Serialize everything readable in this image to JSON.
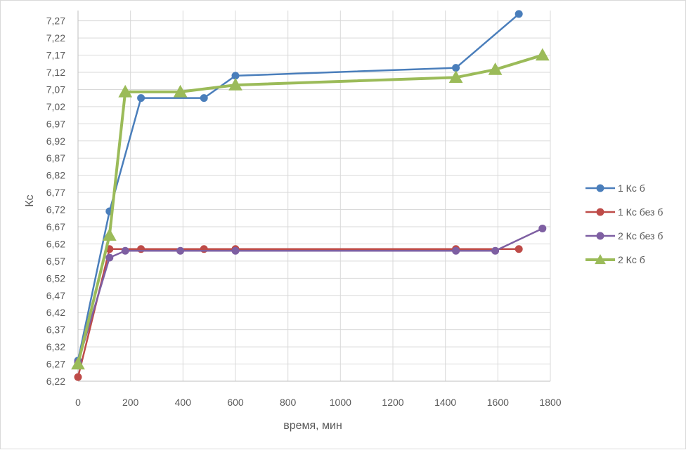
{
  "chart_data": {
    "type": "line",
    "title": "",
    "xlabel": "время, мин",
    "ylabel": "Кс",
    "xlim": [
      0,
      1800
    ],
    "ylim": [
      6.22,
      7.3
    ],
    "xticks": [
      0,
      200,
      400,
      600,
      800,
      1000,
      1200,
      1400,
      1600,
      1800
    ],
    "yticks": [
      6.22,
      6.27,
      6.32,
      6.37,
      6.42,
      6.47,
      6.52,
      6.57,
      6.62,
      6.67,
      6.72,
      6.77,
      6.82,
      6.87,
      6.92,
      6.97,
      7.02,
      7.07,
      7.12,
      7.17,
      7.22,
      7.27
    ],
    "grid": true,
    "legend_position": "right",
    "series": [
      {
        "name": "1 Кс б",
        "color": "#4a7ebb",
        "marker": "circle",
        "x": [
          0,
          120,
          240,
          480,
          600,
          1440,
          1680
        ],
        "y": [
          6.28,
          6.715,
          7.045,
          7.045,
          7.11,
          7.133,
          7.29
        ]
      },
      {
        "name": "1 Кс без б",
        "color": "#be4b48",
        "marker": "circle",
        "x": [
          0,
          120,
          240,
          480,
          600,
          1440,
          1680
        ],
        "y": [
          6.232,
          6.605,
          6.605,
          6.605,
          6.605,
          6.605,
          6.605
        ]
      },
      {
        "name": "2 Кс без б",
        "color": "#7e5fa2",
        "marker": "circle",
        "x": [
          0,
          120,
          180,
          390,
          600,
          1440,
          1590,
          1770
        ],
        "y": [
          6.275,
          6.58,
          6.6,
          6.6,
          6.6,
          6.6,
          6.6,
          6.665
        ]
      },
      {
        "name": "2 Кс б",
        "color": "#9bbb59",
        "marker": "triangle",
        "x": [
          0,
          120,
          180,
          390,
          600,
          1440,
          1590,
          1770
        ],
        "y": [
          6.27,
          6.645,
          7.063,
          7.063,
          7.083,
          7.105,
          7.128,
          7.17
        ]
      }
    ]
  }
}
